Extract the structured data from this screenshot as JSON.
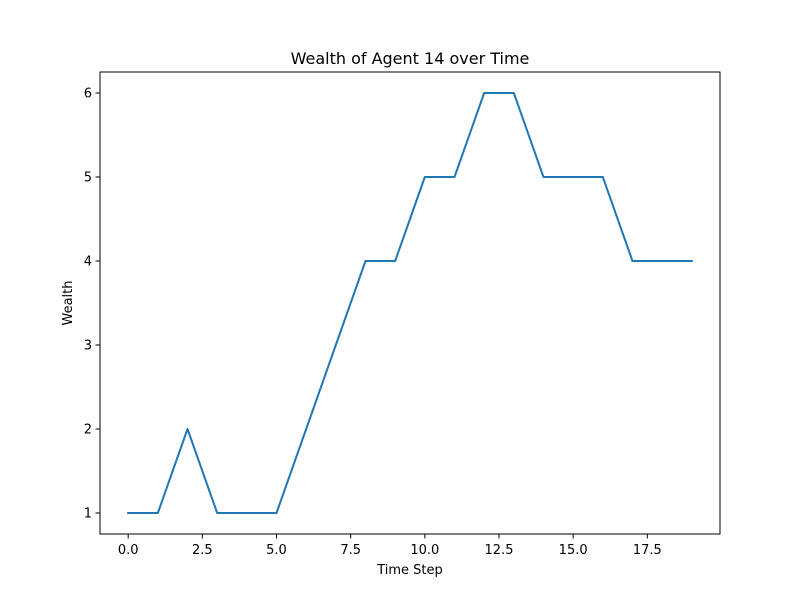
{
  "chart_data": {
    "type": "line",
    "title": "Wealth of Agent 14 over Time",
    "xlabel": "Time Step",
    "ylabel": "Wealth",
    "xlim": [
      -0.95,
      19.95
    ],
    "ylim": [
      0.75,
      6.25
    ],
    "x_ticks": [
      0,
      2.5,
      5,
      7.5,
      10,
      12.5,
      15,
      17.5
    ],
    "x_tick_labels": [
      "0.0",
      "2.5",
      "5.0",
      "7.5",
      "10.0",
      "12.5",
      "15.0",
      "17.5"
    ],
    "y_ticks": [
      1,
      2,
      3,
      4,
      5,
      6
    ],
    "y_tick_labels": [
      "1",
      "2",
      "3",
      "4",
      "5",
      "6"
    ],
    "grid": false,
    "legend": "none",
    "series": [
      {
        "color": "#1f77b4",
        "x": [
          0,
          1,
          2,
          3,
          4,
          5,
          6,
          7,
          8,
          9,
          10,
          11,
          12,
          13,
          14,
          15,
          16,
          17,
          18,
          19
        ],
        "y": [
          1,
          1,
          2,
          1,
          1,
          1,
          2,
          3,
          4,
          4,
          5,
          5,
          6,
          6,
          5,
          5,
          5,
          4,
          4,
          4
        ]
      }
    ]
  }
}
